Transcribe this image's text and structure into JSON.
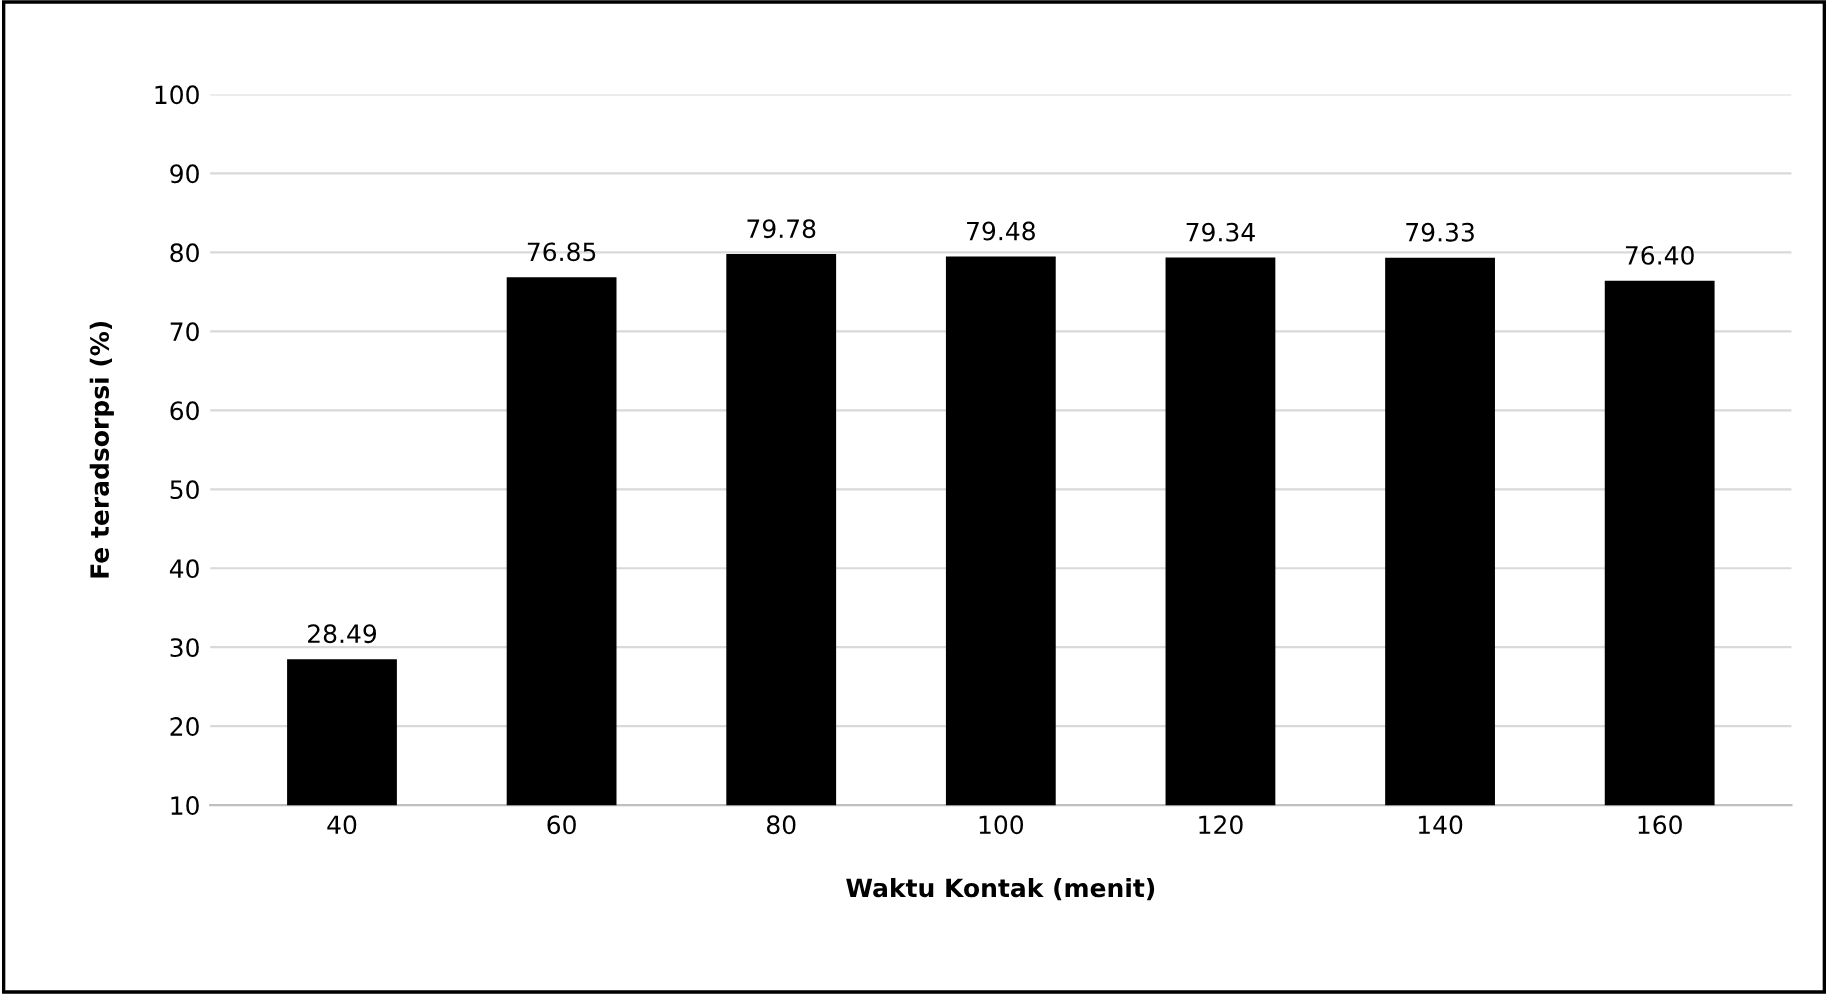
{
  "chart_data": {
    "type": "bar",
    "xlabel": "Waktu Kontak (menit)",
    "ylabel": "Fe teradsorpsi (%)",
    "categories": [
      "40",
      "60",
      "80",
      "100",
      "120",
      "140",
      "160"
    ],
    "values": [
      28.49,
      76.85,
      79.78,
      79.48,
      79.34,
      79.33,
      76.4
    ],
    "value_labels": [
      "28.49",
      "76.85",
      "79.78",
      "79.48",
      "79.34",
      "79.33",
      "76.40"
    ],
    "color": "#000000",
    "ylim": [
      10,
      100
    ],
    "yticks": [
      10,
      20,
      30,
      40,
      50,
      60,
      70,
      80,
      90,
      100
    ],
    "grid": "y",
    "legend": false
  }
}
